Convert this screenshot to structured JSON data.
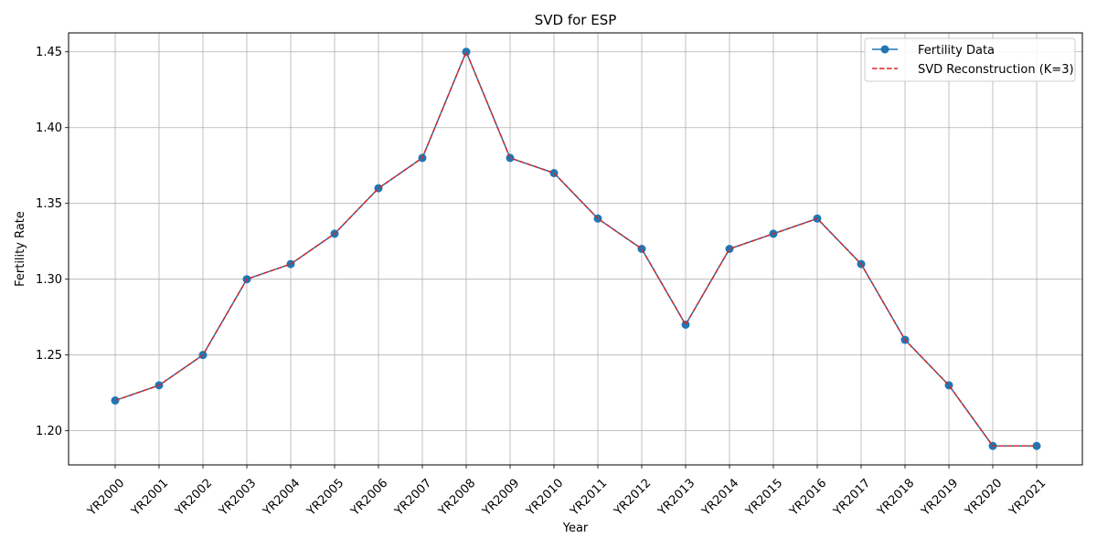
{
  "chart_data": {
    "type": "line",
    "title": "SVD for ESP",
    "xlabel": "Year",
    "ylabel": "Fertility Rate",
    "categories": [
      "YR2000",
      "YR2001",
      "YR2002",
      "YR2003",
      "YR2004",
      "YR2005",
      "YR2006",
      "YR2007",
      "YR2008",
      "YR2009",
      "YR2010",
      "YR2011",
      "YR2012",
      "YR2013",
      "YR2014",
      "YR2015",
      "YR2016",
      "YR2017",
      "YR2018",
      "YR2019",
      "YR2020",
      "YR2021"
    ],
    "ylim": [
      1.1775,
      1.4625
    ],
    "yticks": [
      1.2,
      1.25,
      1.3,
      1.35,
      1.4,
      1.45
    ],
    "ytick_labels": [
      "1.20",
      "1.25",
      "1.30",
      "1.35",
      "1.40",
      "1.45"
    ],
    "grid": true,
    "legend_position": "top-right",
    "series": [
      {
        "name": "Fertility Data",
        "style": "solid-line-circle-markers",
        "color": "#1f77b4",
        "values": [
          1.22,
          1.23,
          1.25,
          1.3,
          1.31,
          1.33,
          1.36,
          1.38,
          1.45,
          1.38,
          1.37,
          1.34,
          1.32,
          1.27,
          1.32,
          1.33,
          1.34,
          1.31,
          1.26,
          1.23,
          1.19,
          1.19
        ]
      },
      {
        "name": "SVD Reconstruction (K=3)",
        "style": "dashed-line",
        "color": "#d62728",
        "values": [
          1.22,
          1.23,
          1.25,
          1.3,
          1.31,
          1.33,
          1.36,
          1.38,
          1.45,
          1.38,
          1.37,
          1.34,
          1.32,
          1.27,
          1.32,
          1.33,
          1.34,
          1.31,
          1.26,
          1.23,
          1.19,
          1.19
        ]
      }
    ]
  }
}
